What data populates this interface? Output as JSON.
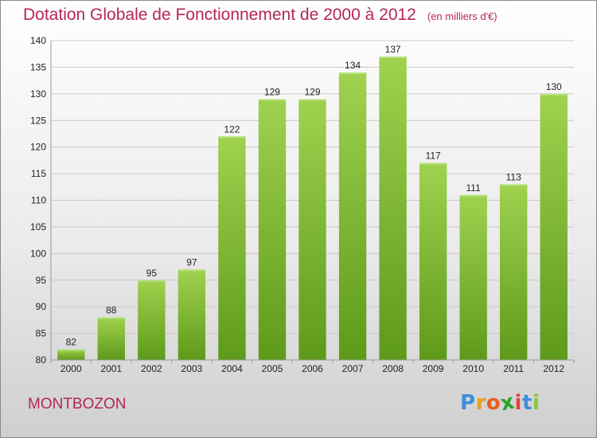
{
  "title": "Dotation Globale de Fonctionnement de 2000 à 2012",
  "unit": "(en milliers d'€)",
  "commune": "MONTBOZON",
  "logo": {
    "letters": [
      "P",
      "r",
      "o",
      "x",
      "i",
      "t",
      "i"
    ],
    "colors": [
      "#3b8fd9",
      "#e8a020",
      "#e85d20",
      "#2aa32a",
      "#e84040",
      "#3b8fd9",
      "#8cc63f"
    ]
  },
  "colors": {
    "bar": "#8cc63f",
    "bar_dark": "#5e9a1a",
    "accent": "#b5265a"
  },
  "chart_data": {
    "type": "bar",
    "title": "Dotation Globale de Fonctionnement de 2000 à 2012",
    "categories": [
      "2000",
      "2001",
      "2002",
      "2003",
      "2004",
      "2005",
      "2006",
      "2007",
      "2008",
      "2009",
      "2010",
      "2011",
      "2012"
    ],
    "values": [
      82,
      88,
      95,
      97,
      122,
      129,
      129,
      134,
      137,
      117,
      111,
      113,
      130
    ],
    "ylim": [
      80,
      140
    ],
    "yticks": [
      80,
      85,
      90,
      95,
      100,
      105,
      110,
      115,
      120,
      125,
      130,
      135,
      140
    ],
    "grid": true
  }
}
